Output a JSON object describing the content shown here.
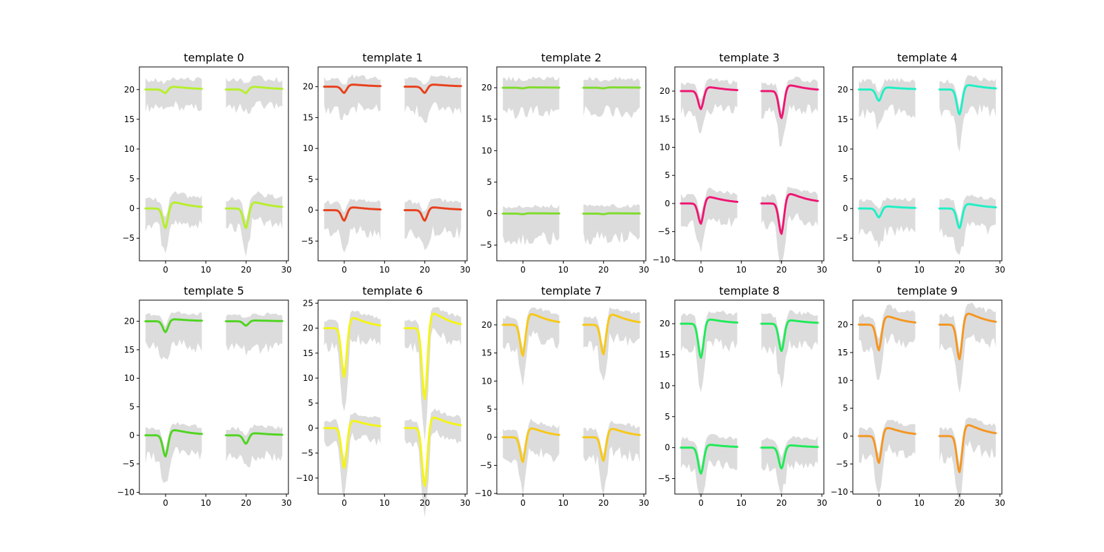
{
  "figure": {
    "background": "#ffffff",
    "band_color": "#dcdcdc"
  },
  "chart_data": [
    {
      "type": "line",
      "title": "template 0",
      "color": "#b6ef2c",
      "ylim": [
        -8.8,
        23.8
      ],
      "yticks": [
        -5,
        0,
        5,
        10,
        15,
        20
      ],
      "trough_top": 0.6,
      "trough_bottom": 3.3,
      "peak_top": 0.4,
      "peak_bottom": 0.9,
      "right_boost": 1.0,
      "upper_band": [
        -4,
        2
      ],
      "lower_band": [
        -4,
        2
      ],
      "line_channels": [
        20,
        0
      ]
    },
    {
      "type": "line",
      "title": "template 1",
      "color": "#e8401c",
      "ylim": [
        -8.2,
        23.2
      ],
      "yticks": [
        -5,
        0,
        5,
        10,
        15,
        20
      ],
      "trough_top": 1.0,
      "trough_bottom": 1.7,
      "peak_top": 0.3,
      "peak_bottom": 0.4,
      "right_boost": 1.0,
      "upper_band": [
        -5,
        1.7
      ],
      "lower_band": [
        -5,
        1.7
      ],
      "line_channels": [
        20,
        0
      ]
    },
    {
      "type": "line",
      "title": "template 2",
      "color": "#7edc2c",
      "ylim": [
        -7.5,
        23.3
      ],
      "yticks": [
        -5,
        0,
        5,
        10,
        15,
        20
      ],
      "trough_top": 0.1,
      "trough_bottom": 0.1,
      "peak_top": 0.05,
      "peak_bottom": 0.05,
      "right_boost": 1.0,
      "upper_band": [
        -5,
        1.8
      ],
      "lower_band": [
        -5,
        1.5
      ],
      "line_channels": [
        20,
        0
      ]
    },
    {
      "type": "line",
      "title": "template 3",
      "color": "#ee1672",
      "ylim": [
        -10.2,
        24.3
      ],
      "yticks": [
        -10,
        -5,
        0,
        5,
        10,
        15,
        20
      ],
      "trough_top": 3.2,
      "trough_bottom": 3.6,
      "peak_top": 0.6,
      "peak_bottom": 1.0,
      "right_boost": 1.5,
      "upper_band": [
        -5,
        1.8
      ],
      "lower_band": [
        -5,
        1.8
      ],
      "line_channels": [
        20,
        0
      ]
    },
    {
      "type": "line",
      "title": "template 4",
      "color": "#1ef0c4",
      "ylim": [
        -8.8,
        23.8
      ],
      "yticks": [
        -5,
        0,
        5,
        10,
        15,
        20
      ],
      "trough_top": 1.9,
      "trough_bottom": 1.5,
      "peak_top": 0.3,
      "peak_bottom": 0.3,
      "right_boost": 2.2,
      "upper_band": [
        -5,
        1.8
      ],
      "lower_band": [
        -5,
        1.8
      ],
      "line_channels": [
        20,
        0
      ]
    },
    {
      "type": "line",
      "title": "template 5",
      "color": "#4fd421",
      "ylim": [
        -10.3,
        23.7
      ],
      "yticks": [
        -10,
        -5,
        0,
        5,
        10,
        15,
        20
      ],
      "trough_top": 1.9,
      "trough_bottom": 3.7,
      "peak_top": 0.3,
      "peak_bottom": 0.8,
      "right_boost": 0.4,
      "upper_band": [
        -6,
        1.5
      ],
      "lower_band": [
        -5,
        1.6
      ],
      "line_channels": [
        20,
        0
      ]
    },
    {
      "type": "line",
      "title": "template 6",
      "color": "#f4f417",
      "ylim": [
        -13.2,
        25.6
      ],
      "yticks": [
        -10,
        -5,
        0,
        5,
        10,
        15,
        20,
        25
      ],
      "trough_top": 9.8,
      "trough_bottom": 8.0,
      "peak_top": 1.8,
      "peak_bottom": 1.3,
      "right_boost": 1.45,
      "upper_band": [
        -5,
        1.8
      ],
      "lower_band": [
        -4,
        2
      ],
      "line_channels": [
        20,
        0
      ]
    },
    {
      "type": "line",
      "title": "template 7",
      "color": "#f7c818",
      "ylim": [
        -10.1,
        24.4
      ],
      "yticks": [
        -10,
        -5,
        0,
        5,
        10,
        15,
        20
      ],
      "trough_top": 5.5,
      "trough_bottom": 4.4,
      "peak_top": 1.7,
      "peak_bottom": 1.4,
      "right_boost": 0.95,
      "upper_band": [
        -5,
        1.8
      ],
      "lower_band": [
        -5,
        1.8
      ],
      "line_channels": [
        20,
        0
      ]
    },
    {
      "type": "line",
      "title": "template 8",
      "color": "#20ea59",
      "ylim": [
        -7.5,
        23.8
      ],
      "yticks": [
        -5,
        0,
        5,
        10,
        15,
        20
      ],
      "trough_top": 5.5,
      "trough_bottom": 4.2,
      "peak_top": 0.6,
      "peak_bottom": 0.4,
      "right_boost": 0.8,
      "upper_band": [
        -5,
        1.8
      ],
      "lower_band": [
        -4,
        1.8
      ],
      "line_channels": [
        20,
        0
      ]
    },
    {
      "type": "line",
      "title": "template 9",
      "color": "#f49622",
      "ylim": [
        -10.4,
        24.4
      ],
      "yticks": [
        -10,
        -5,
        0,
        5,
        10,
        15,
        20
      ],
      "trough_top": 4.6,
      "trough_bottom": 4.8,
      "peak_top": 1.3,
      "peak_bottom": 1.3,
      "right_boost": 1.35,
      "upper_band": [
        -5,
        2.2
      ],
      "lower_band": [
        -5,
        1.8
      ],
      "line_channels": [
        20,
        0
      ]
    }
  ],
  "shared_x": {
    "xlim": [
      -6.5,
      30.5
    ],
    "xticks": [
      0,
      10,
      20,
      30
    ],
    "segments": [
      [
        -5,
        9
      ],
      [
        15,
        29
      ]
    ],
    "trough_offset": 0
  }
}
